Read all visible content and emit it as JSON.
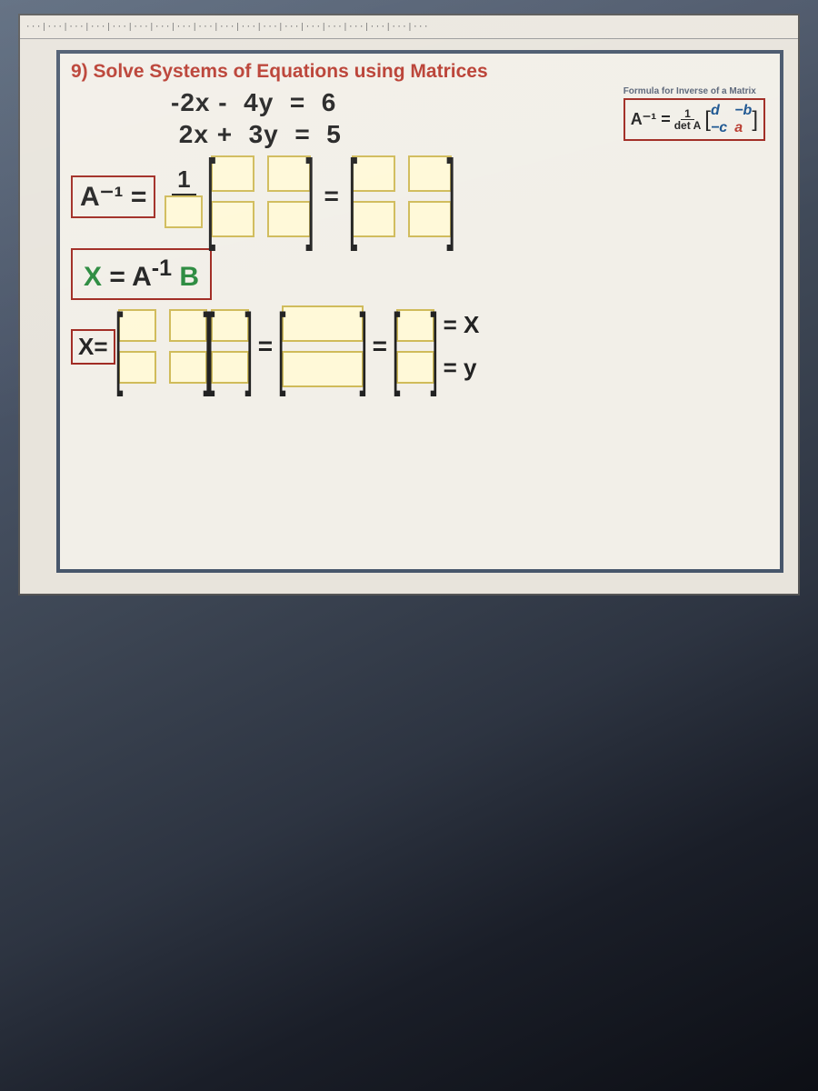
{
  "title": "9) Solve Systems of Equations using Matrices",
  "equations": "-2x -  4y  =  6\n 2x +  3y  =  5",
  "ruler": "···|···|···|···|···|···|···|···|···|···|···|···|···|···|···|···|···|···|···",
  "formula": {
    "heading": "Formula for Inverse of a Matrix",
    "ainv": "A⁻¹ =",
    "frac_top": "1",
    "frac_bot": "det A",
    "cells": {
      "d": "d",
      "mb": "−b",
      "mc": "−c",
      "a": "a"
    }
  },
  "labels": {
    "ainv": "A⁻¹ =",
    "one": "1",
    "eq": "=",
    "xab": {
      "x": "X",
      "mid": " = A",
      "sup": "-1",
      "b": " B"
    },
    "xlbl": "X=",
    "resx": "= X",
    "resy": "= y"
  },
  "colors": {
    "highlight": "#b83a2e",
    "frame": "#47566b",
    "inputBg": "#fff9d8",
    "inputBorder": "#d0bb5a"
  }
}
